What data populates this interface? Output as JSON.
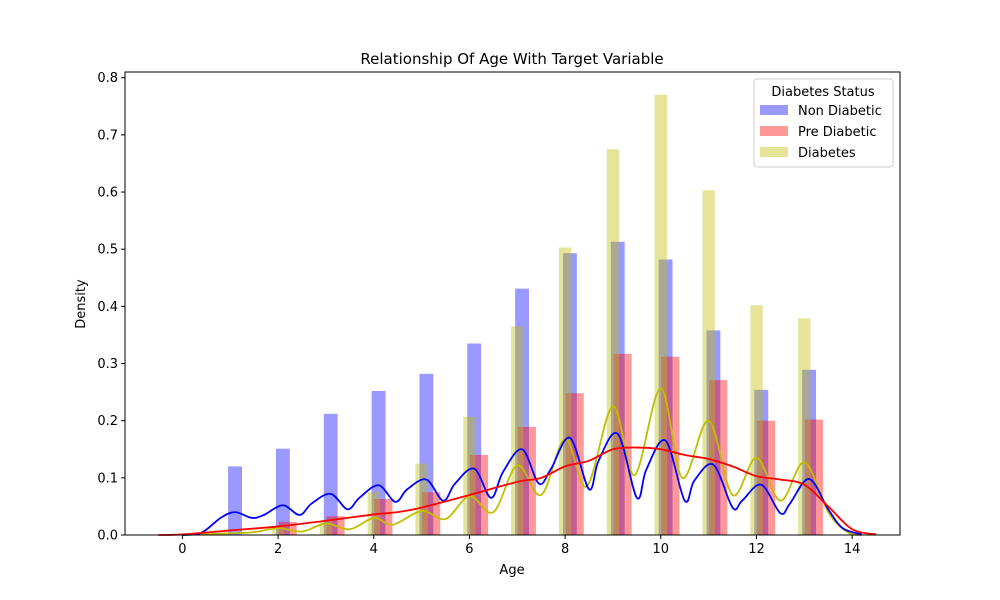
{
  "chart_data": {
    "type": "bar",
    "title": "Relationship Of Age With Target Variable",
    "xlabel": "Age",
    "ylabel": "Density",
    "xlim": [
      -1.2,
      15.0
    ],
    "ylim": [
      0,
      0.81
    ],
    "xticks": [
      0,
      2,
      4,
      6,
      8,
      10,
      12,
      14
    ],
    "yticks": [
      0.0,
      0.1,
      0.2,
      0.3,
      0.4,
      0.5,
      0.6,
      0.7,
      0.8
    ],
    "grid": false,
    "legend": {
      "title": "Diabetes Status",
      "placement": "top-right"
    },
    "series": [
      {
        "name": "Non Diabetic",
        "color": "#0000ff",
        "bar_alpha": 0.4,
        "bar_width": 0.29,
        "bars": [
          {
            "x": 1.1,
            "y": 0.12
          },
          {
            "x": 2.1,
            "y": 0.151
          },
          {
            "x": 3.1,
            "y": 0.212
          },
          {
            "x": 4.1,
            "y": 0.252
          },
          {
            "x": 5.1,
            "y": 0.282
          },
          {
            "x": 6.1,
            "y": 0.335
          },
          {
            "x": 7.1,
            "y": 0.431
          },
          {
            "x": 8.1,
            "y": 0.493
          },
          {
            "x": 9.1,
            "y": 0.513
          },
          {
            "x": 10.1,
            "y": 0.482
          },
          {
            "x": 11.1,
            "y": 0.358
          },
          {
            "x": 12.1,
            "y": 0.254
          },
          {
            "x": 13.1,
            "y": 0.289
          }
        ],
        "kde": [
          [
            0.0,
            0.0
          ],
          [
            0.4,
            0.004
          ],
          [
            0.8,
            0.03
          ],
          [
            1.1,
            0.04
          ],
          [
            1.45,
            0.03
          ],
          [
            1.7,
            0.035
          ],
          [
            2.1,
            0.052
          ],
          [
            2.45,
            0.035
          ],
          [
            2.7,
            0.055
          ],
          [
            3.1,
            0.072
          ],
          [
            3.45,
            0.045
          ],
          [
            3.7,
            0.065
          ],
          [
            4.1,
            0.087
          ],
          [
            4.45,
            0.058
          ],
          [
            4.7,
            0.08
          ],
          [
            5.1,
            0.097
          ],
          [
            5.45,
            0.06
          ],
          [
            5.7,
            0.09
          ],
          [
            6.1,
            0.116
          ],
          [
            6.45,
            0.065
          ],
          [
            6.7,
            0.11
          ],
          [
            7.1,
            0.15
          ],
          [
            7.45,
            0.09
          ],
          [
            7.7,
            0.115
          ],
          [
            8.1,
            0.17
          ],
          [
            8.5,
            0.08
          ],
          [
            8.7,
            0.13
          ],
          [
            9.1,
            0.177
          ],
          [
            9.5,
            0.065
          ],
          [
            9.7,
            0.115
          ],
          [
            10.1,
            0.165
          ],
          [
            10.5,
            0.06
          ],
          [
            10.7,
            0.095
          ],
          [
            11.1,
            0.123
          ],
          [
            11.5,
            0.048
          ],
          [
            11.7,
            0.06
          ],
          [
            12.1,
            0.088
          ],
          [
            12.5,
            0.038
          ],
          [
            12.7,
            0.055
          ],
          [
            13.1,
            0.098
          ],
          [
            13.5,
            0.045
          ],
          [
            13.8,
            0.012
          ],
          [
            14.2,
            0.001
          ]
        ]
      },
      {
        "name": "Pre Diabetic",
        "color": "#ff0000",
        "bar_alpha": 0.4,
        "bar_width": 0.38,
        "bars": [
          {
            "x": 2.2,
            "y": 0.023
          },
          {
            "x": 3.2,
            "y": 0.033
          },
          {
            "x": 4.2,
            "y": 0.063
          },
          {
            "x": 5.2,
            "y": 0.075
          },
          {
            "x": 6.2,
            "y": 0.14
          },
          {
            "x": 7.2,
            "y": 0.189
          },
          {
            "x": 8.2,
            "y": 0.248
          },
          {
            "x": 9.2,
            "y": 0.317
          },
          {
            "x": 10.2,
            "y": 0.312
          },
          {
            "x": 11.2,
            "y": 0.271
          },
          {
            "x": 12.2,
            "y": 0.2
          },
          {
            "x": 13.2,
            "y": 0.202
          }
        ],
        "kde": [
          [
            -0.5,
            0.0
          ],
          [
            0.0,
            0.001
          ],
          [
            1.0,
            0.008
          ],
          [
            2.0,
            0.015
          ],
          [
            3.0,
            0.025
          ],
          [
            4.0,
            0.036
          ],
          [
            4.5,
            0.04
          ],
          [
            5.0,
            0.048
          ],
          [
            6.0,
            0.07
          ],
          [
            7.0,
            0.093
          ],
          [
            7.5,
            0.1
          ],
          [
            8.0,
            0.12
          ],
          [
            8.5,
            0.13
          ],
          [
            9.0,
            0.15
          ],
          [
            9.5,
            0.153
          ],
          [
            10.0,
            0.15
          ],
          [
            10.5,
            0.14
          ],
          [
            11.0,
            0.133
          ],
          [
            11.5,
            0.12
          ],
          [
            12.0,
            0.103
          ],
          [
            12.5,
            0.097
          ],
          [
            13.0,
            0.088
          ],
          [
            13.5,
            0.05
          ],
          [
            14.0,
            0.01
          ],
          [
            14.5,
            0.001
          ]
        ]
      },
      {
        "name": "Diabetes",
        "color": "#bfbf00",
        "bar_alpha": 0.4,
        "bar_width": 0.26,
        "bars": [
          {
            "x": 2.0,
            "y": 0.015
          },
          {
            "x": 3.0,
            "y": 0.025
          },
          {
            "x": 4.0,
            "y": 0.075
          },
          {
            "x": 5.0,
            "y": 0.125
          },
          {
            "x": 6.0,
            "y": 0.207
          },
          {
            "x": 7.0,
            "y": 0.365
          },
          {
            "x": 8.0,
            "y": 0.503
          },
          {
            "x": 9.0,
            "y": 0.675
          },
          {
            "x": 10.0,
            "y": 0.77
          },
          {
            "x": 11.0,
            "y": 0.603
          },
          {
            "x": 12.0,
            "y": 0.402
          },
          {
            "x": 13.0,
            "y": 0.379
          }
        ],
        "kde": [
          [
            0.0,
            0.0
          ],
          [
            1.0,
            0.003
          ],
          [
            1.5,
            0.005
          ],
          [
            2.0,
            0.012
          ],
          [
            2.5,
            0.006
          ],
          [
            3.0,
            0.02
          ],
          [
            3.5,
            0.01
          ],
          [
            4.0,
            0.03
          ],
          [
            4.4,
            0.018
          ],
          [
            5.0,
            0.042
          ],
          [
            5.5,
            0.028
          ],
          [
            6.0,
            0.068
          ],
          [
            6.5,
            0.04
          ],
          [
            7.0,
            0.122
          ],
          [
            7.5,
            0.07
          ],
          [
            8.0,
            0.168
          ],
          [
            8.45,
            0.085
          ],
          [
            9.0,
            0.225
          ],
          [
            9.45,
            0.105
          ],
          [
            10.0,
            0.257
          ],
          [
            10.45,
            0.1
          ],
          [
            11.0,
            0.2
          ],
          [
            11.5,
            0.07
          ],
          [
            12.0,
            0.135
          ],
          [
            12.5,
            0.06
          ],
          [
            13.0,
            0.127
          ],
          [
            13.5,
            0.04
          ],
          [
            13.9,
            0.005
          ],
          [
            14.2,
            0.0
          ]
        ]
      }
    ]
  }
}
